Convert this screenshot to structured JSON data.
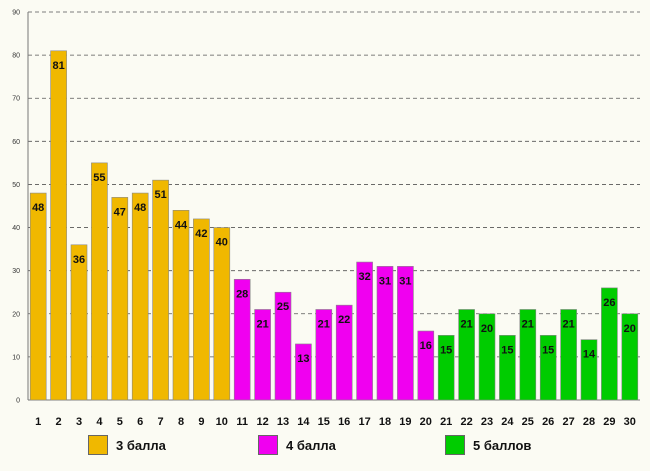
{
  "chart_data": {
    "type": "bar",
    "categories": [
      "1",
      "2",
      "3",
      "4",
      "5",
      "6",
      "7",
      "8",
      "9",
      "10",
      "11",
      "12",
      "13",
      "14",
      "15",
      "16",
      "17",
      "18",
      "19",
      "20",
      "21",
      "22",
      "23",
      "24",
      "25",
      "26",
      "27",
      "28",
      "29",
      "30"
    ],
    "values": [
      48,
      81,
      36,
      55,
      47,
      48,
      51,
      44,
      42,
      40,
      28,
      21,
      25,
      13,
      21,
      22,
      32,
      31,
      31,
      16,
      15,
      21,
      20,
      15,
      21,
      15,
      21,
      14,
      26,
      20
    ],
    "groups": [
      0,
      0,
      0,
      0,
      0,
      0,
      0,
      0,
      0,
      0,
      1,
      1,
      1,
      1,
      1,
      1,
      1,
      1,
      1,
      1,
      2,
      2,
      2,
      2,
      2,
      2,
      2,
      2,
      2,
      2
    ],
    "series": [
      {
        "name": "3 балла",
        "color": "#f0b800"
      },
      {
        "name": "4 балла",
        "color": "#f000f0"
      },
      {
        "name": "5 баллов",
        "color": "#00cc00"
      }
    ],
    "yticks": [
      0,
      10,
      20,
      30,
      40,
      50,
      60,
      70,
      80,
      90
    ],
    "ylim": [
      0,
      90
    ],
    "grid": true,
    "title": "",
    "xlabel": "",
    "ylabel": ""
  }
}
